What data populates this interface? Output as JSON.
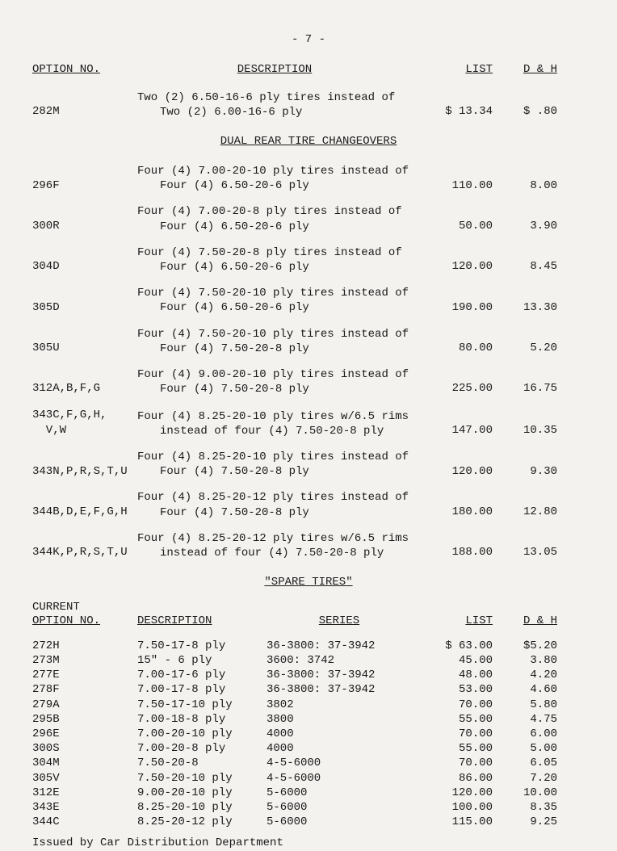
{
  "page_number": "- 7 -",
  "headers_main": {
    "option": "OPTION NO.",
    "description": "DESCRIPTION",
    "list": "LIST",
    "dh": "D & H"
  },
  "first_row": {
    "option": "282M",
    "desc_line1": "Two (2) 6.50-16-6 ply tires instead of",
    "desc_line2": "Two (2) 6.00-16-6 ply",
    "list": "$ 13.34",
    "dh": "$ .80"
  },
  "section1_title": "DUAL REAR TIRE CHANGEOVERS",
  "rows_main": [
    {
      "option": "296F",
      "d1": "Four (4) 7.00-20-10 ply tires instead of",
      "d2": "Four (4) 6.50-20-6 ply",
      "list": "110.00",
      "dh": "8.00"
    },
    {
      "option": "300R",
      "d1": "Four (4) 7.00-20-8 ply tires instead of",
      "d2": "Four (4) 6.50-20-6 ply",
      "list": "50.00",
      "dh": "3.90"
    },
    {
      "option": "304D",
      "d1": "Four (4) 7.50-20-8 ply tires instead of",
      "d2": "Four (4) 6.50-20-6 ply",
      "list": "120.00",
      "dh": "8.45"
    },
    {
      "option": "305D",
      "d1": "Four (4) 7.50-20-10 ply tires instead of",
      "d2": "Four (4) 6.50-20-6 ply",
      "list": "190.00",
      "dh": "13.30"
    },
    {
      "option": "305U",
      "d1": "Four (4) 7.50-20-10 ply tires instead of",
      "d2": "Four (4) 7.50-20-8 ply",
      "list": "80.00",
      "dh": "5.20"
    },
    {
      "option": "312A,B,F,G",
      "d1": "Four (4) 9.00-20-10 ply tires instead of",
      "d2": "Four (4) 7.50-20-8 ply",
      "list": "225.00",
      "dh": "16.75"
    },
    {
      "option": "343C,F,G,H,",
      "option2": "V,W",
      "d1": "Four (4) 8.25-20-10 ply tires w/6.5 rims",
      "d2": "instead of four (4) 7.50-20-8 ply",
      "list": "147.00",
      "dh": "10.35"
    },
    {
      "option": "343N,P,R,S,T,U",
      "d1": "Four (4) 8.25-20-10 ply tires instead of",
      "d2": "Four (4) 7.50-20-8 ply",
      "list": "120.00",
      "dh": "9.30"
    },
    {
      "option": "344B,D,E,F,G,H",
      "d1": "Four (4) 8.25-20-12 ply tires instead of",
      "d2": "Four (4) 7.50-20-8 ply",
      "list": "180.00",
      "dh": "12.80"
    },
    {
      "option": "344K,P,R,S,T,U",
      "d1": "Four (4) 8.25-20-12 ply tires w/6.5 rims",
      "d2": "instead of four (4) 7.50-20-8 ply",
      "list": "188.00",
      "dh": "13.05"
    }
  ],
  "section2_title": "\"SPARE TIRES\"",
  "spare_label_current": "CURRENT",
  "spare_headers": {
    "option": "OPTION NO.",
    "description": "DESCRIPTION",
    "series": "SERIES",
    "list": "LIST",
    "dh": "D & H"
  },
  "spare_rows": [
    {
      "opt": "272H",
      "desc": "7.50-17-8 ply",
      "series": "36-3800:  37-3942",
      "list": "$ 63.00",
      "dh": "$5.20"
    },
    {
      "opt": "273M",
      "desc": "15\" - 6 ply",
      "series": "3600:  3742",
      "list": "45.00",
      "dh": "3.80"
    },
    {
      "opt": "277E",
      "desc": "7.00-17-6 ply",
      "series": "36-3800:  37-3942",
      "list": "48.00",
      "dh": "4.20"
    },
    {
      "opt": "278F",
      "desc": "7.00-17-8 ply",
      "series": "36-3800:  37-3942",
      "list": "53.00",
      "dh": "4.60"
    },
    {
      "opt": "279A",
      "desc": "7.50-17-10 ply",
      "series": "3802",
      "list": "70.00",
      "dh": "5.80"
    },
    {
      "opt": "295B",
      "desc": "7.00-18-8 ply",
      "series": "3800",
      "list": "55.00",
      "dh": "4.75"
    },
    {
      "opt": "296E",
      "desc": "7.00-20-10 ply",
      "series": "4000",
      "list": "70.00",
      "dh": "6.00"
    },
    {
      "opt": "300S",
      "desc": "7.00-20-8 ply",
      "series": "4000",
      "list": "55.00",
      "dh": "5.00"
    },
    {
      "opt": "304M",
      "desc": "7.50-20-8",
      "series": "4-5-6000",
      "list": "70.00",
      "dh": "6.05"
    },
    {
      "opt": "305V",
      "desc": "7.50-20-10 ply",
      "series": "4-5-6000",
      "list": "86.00",
      "dh": "7.20"
    },
    {
      "opt": "312E",
      "desc": "9.00-20-10 ply",
      "series": "5-6000",
      "list": "120.00",
      "dh": "10.00"
    },
    {
      "opt": "343E",
      "desc": "8.25-20-10 ply",
      "series": "5-6000",
      "list": "100.00",
      "dh": "8.35"
    },
    {
      "opt": "344C",
      "desc": "8.25-20-12 ply",
      "series": "5-6000",
      "list": "115.00",
      "dh": "9.25"
    }
  ],
  "issued_by": "Issued by Car Distribution Department"
}
